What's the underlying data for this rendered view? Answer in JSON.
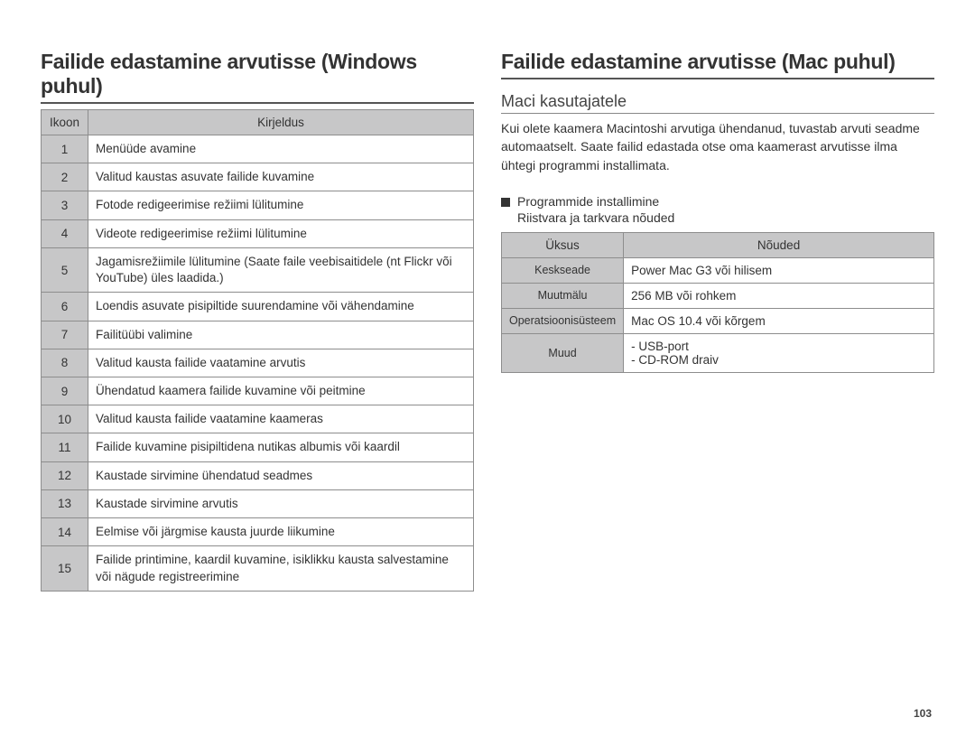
{
  "left": {
    "title": "Failide edastamine arvutisse (Windows puhul)",
    "table": {
      "headers": [
        "Ikoon",
        "Kirjeldus"
      ],
      "rows": [
        [
          "1",
          "Menüüde avamine"
        ],
        [
          "2",
          "Valitud kaustas asuvate failide kuvamine"
        ],
        [
          "3",
          "Fotode redigeerimise režiimi lülitumine"
        ],
        [
          "4",
          "Videote redigeerimise režiimi lülitumine"
        ],
        [
          "5",
          "Jagamisrežiimile lülitumine (Saate faile veebisaitidele (nt Flickr või YouTube) üles laadida.)"
        ],
        [
          "6",
          "Loendis asuvate pisipiltide suurendamine või vähendamine"
        ],
        [
          "7",
          "Failitüübi valimine"
        ],
        [
          "8",
          "Valitud kausta failide vaatamine arvutis"
        ],
        [
          "9",
          "Ühendatud kaamera failide kuvamine või peitmine"
        ],
        [
          "10",
          "Valitud kausta failide vaatamine kaameras"
        ],
        [
          "11",
          "Failide kuvamine pisipiltidena nutikas albumis või kaardil"
        ],
        [
          "12",
          "Kaustade sirvimine ühendatud seadmes"
        ],
        [
          "13",
          "Kaustade sirvimine arvutis"
        ],
        [
          "14",
          "Eelmise või järgmise kausta juurde liikumine"
        ],
        [
          "15",
          "Failide printimine, kaardil kuvamine, isiklikku kausta salvestamine või nägude registreerimine"
        ]
      ]
    }
  },
  "right": {
    "title": "Failide edastamine arvutisse (Mac puhul)",
    "subtitle": "Maci kasutajatele",
    "body": "Kui olete kaamera Macintoshi arvutiga ühendanud, tuvastab arvuti seadme automaatselt. Saate failid edastada otse oma kaamerast arvutisse ilma ühtegi programmi installimata.",
    "bullet": "Programmide installimine",
    "sub_line": "Riistvara ja tarkvara nõuded",
    "req_table": {
      "headers": [
        "Üksus",
        "Nõuded"
      ],
      "rows": [
        [
          "Keskseade",
          "Power Mac G3 või hilisem"
        ],
        [
          "Muutmälu",
          "256 MB või rohkem"
        ],
        [
          "Operatsioonisüsteem",
          "Mac OS 10.4 või kõrgem"
        ],
        [
          "Muud",
          "- USB-port\n- CD-ROM draiv"
        ]
      ]
    }
  },
  "page_number": "103"
}
